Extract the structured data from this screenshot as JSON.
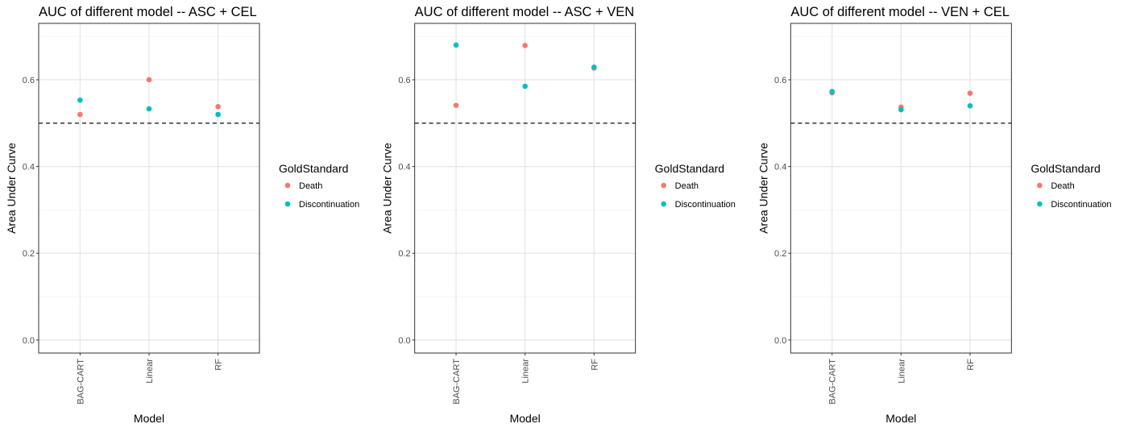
{
  "chart_data": [
    {
      "type": "scatter",
      "title": "AUC of different model -- ASC + CEL",
      "xlabel": "Model",
      "ylabel": "Area Under Curve",
      "categories": [
        "BAG-CART",
        "Linear",
        "RF"
      ],
      "ylim": [
        -0.03,
        0.73
      ],
      "yticks": [
        0.0,
        0.2,
        0.4,
        0.6
      ],
      "yticklabels": [
        "0.0",
        "0.2",
        "0.4",
        "0.6"
      ],
      "reference_line": 0.5,
      "grid": true,
      "legend": {
        "title": "GoldStandard",
        "position": "right"
      },
      "series": [
        {
          "name": "Death",
          "color": "#F8766D",
          "values": [
            0.52,
            0.6,
            0.538
          ]
        },
        {
          "name": "Discontinuation",
          "color": "#00BFC4",
          "values": [
            0.553,
            0.533,
            0.52
          ]
        }
      ]
    },
    {
      "type": "scatter",
      "title": "AUC of different model -- ASC + VEN",
      "xlabel": "Model",
      "ylabel": "Area Under Curve",
      "categories": [
        "BAG-CART",
        "Linear",
        "RF"
      ],
      "ylim": [
        -0.03,
        0.73
      ],
      "yticks": [
        0.0,
        0.2,
        0.4,
        0.6
      ],
      "yticklabels": [
        "0.0",
        "0.2",
        "0.4",
        "0.6"
      ],
      "reference_line": 0.5,
      "grid": true,
      "legend": {
        "title": "GoldStandard",
        "position": "right"
      },
      "series": [
        {
          "name": "Death",
          "color": "#F8766D",
          "values": [
            0.541,
            0.679,
            0.627
          ]
        },
        {
          "name": "Discontinuation",
          "color": "#00BFC4",
          "values": [
            0.68,
            0.585,
            0.629
          ]
        }
      ]
    },
    {
      "type": "scatter",
      "title": "AUC of different model -- VEN + CEL",
      "xlabel": "Model",
      "ylabel": "Area Under Curve",
      "categories": [
        "BAG-CART",
        "Linear",
        "RF"
      ],
      "ylim": [
        -0.03,
        0.73
      ],
      "yticks": [
        0.0,
        0.2,
        0.4,
        0.6
      ],
      "yticklabels": [
        "0.0",
        "0.2",
        "0.4",
        "0.6"
      ],
      "reference_line": 0.5,
      "grid": true,
      "legend": {
        "title": "GoldStandard",
        "position": "right"
      },
      "series": [
        {
          "name": "Death",
          "color": "#F8766D",
          "values": [
            0.57,
            0.537,
            0.569
          ]
        },
        {
          "name": "Discontinuation",
          "color": "#00BFC4",
          "values": [
            0.573,
            0.531,
            0.54
          ]
        }
      ]
    }
  ]
}
